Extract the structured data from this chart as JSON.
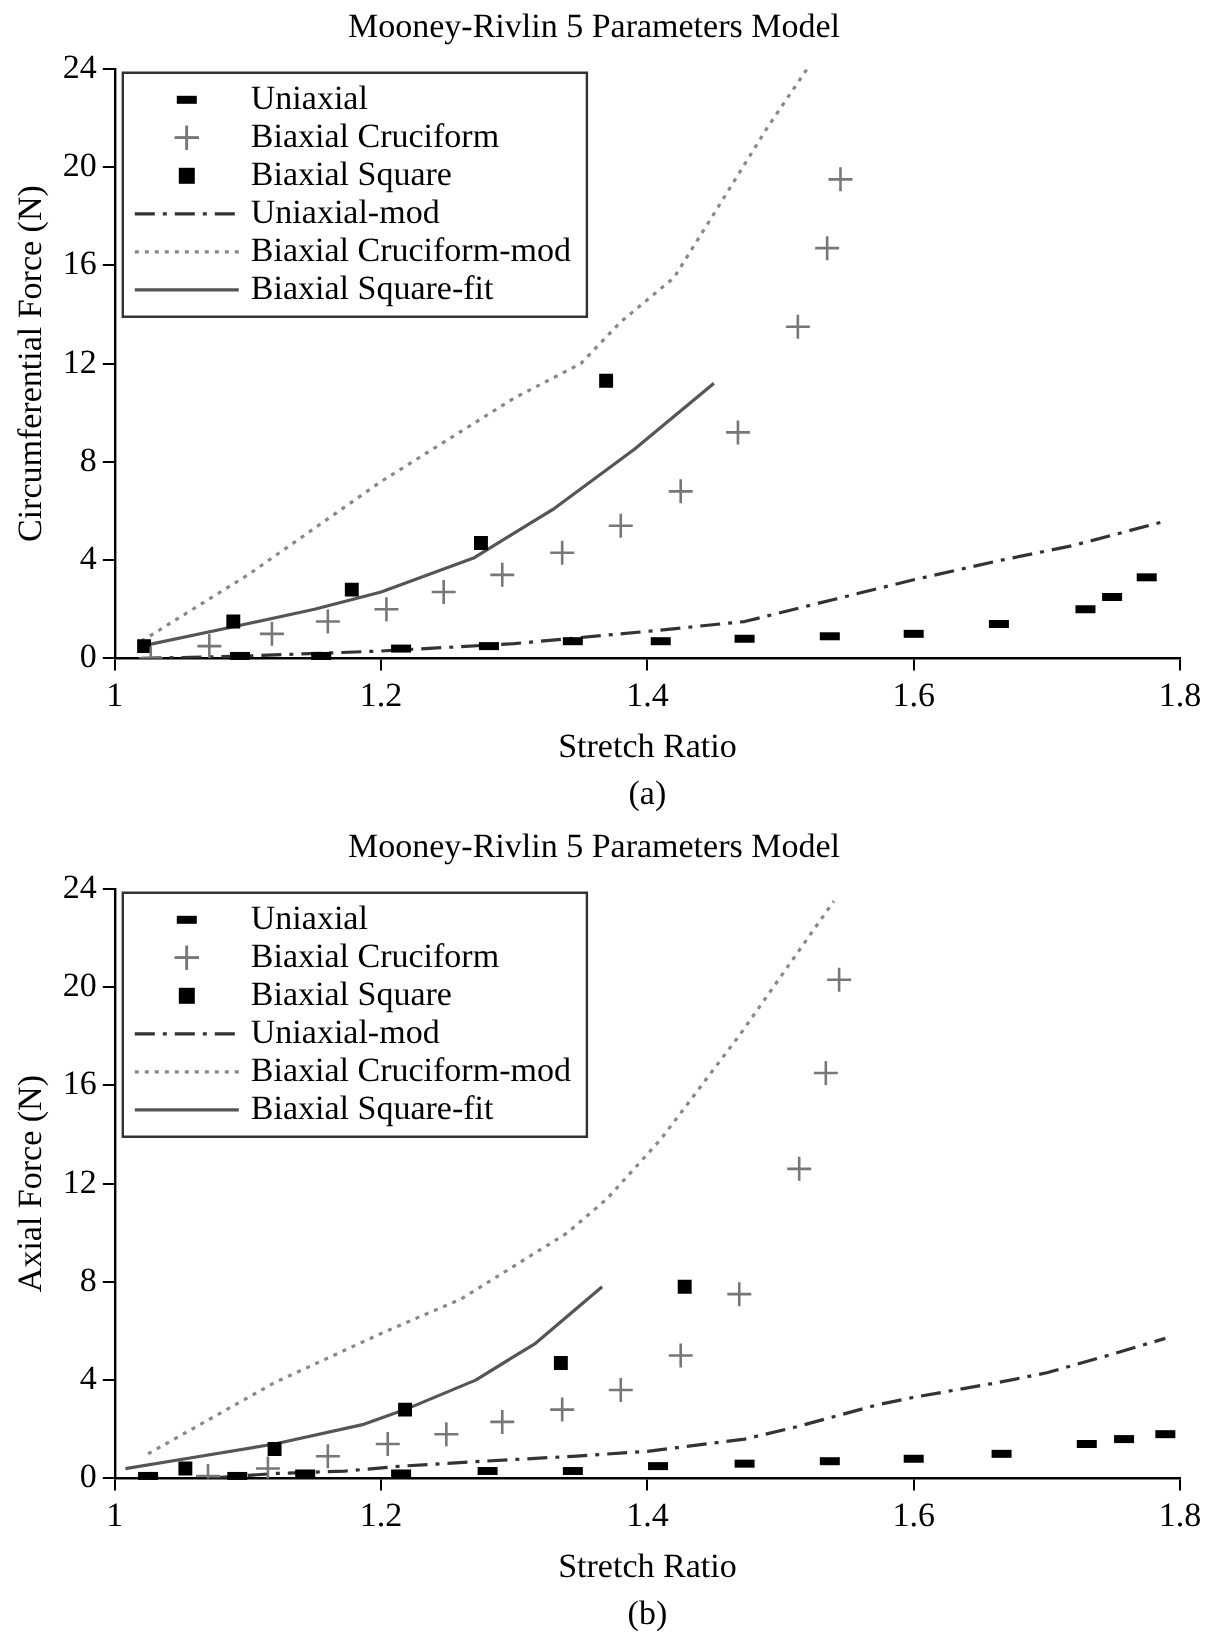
{
  "chart_data": [
    {
      "type": "scatter",
      "title": "Mooney-Rivlin 5 Parameters Model",
      "xlabel": "Stretch Ratio",
      "ylabel": "Circumferential Force (N)",
      "annotations": [
        "(a)"
      ],
      "xlim": [
        1,
        1.8
      ],
      "xticks": [
        1,
        1.2,
        1.4,
        1.6,
        1.8
      ],
      "ylim": [
        0,
        24
      ],
      "yticks": [
        0,
        4,
        8,
        12,
        16,
        20,
        24
      ],
      "grid": false,
      "legend": "top left",
      "series": [
        {
          "name": "Uniaxial",
          "type": "scatter",
          "color": "#000000",
          "x": [
            1.094,
            1.155,
            1.215,
            1.281,
            1.344,
            1.41,
            1.473,
            1.537,
            1.6,
            1.664,
            1.729,
            1.749,
            1.775
          ],
          "values": [
            0.1,
            0.1,
            0.4,
            0.5,
            0.7,
            0.7,
            0.8,
            0.9,
            1.0,
            1.4,
            2.0,
            2.5,
            3.3
          ]
        },
        {
          "name": "Biaxial Cruciform",
          "type": "scatter",
          "marker": "cross",
          "color": "#777777",
          "x": [
            1.027,
            1.071,
            1.118,
            1.16,
            1.204,
            1.247,
            1.291,
            1.336,
            1.38,
            1.425,
            1.468,
            1.513,
            1.535,
            1.545
          ],
          "values": [
            0,
            0.5,
            1.0,
            1.5,
            2.0,
            2.7,
            3.4,
            4.3,
            5.4,
            6.8,
            9.2,
            13.5,
            16.7,
            19.5
          ]
        },
        {
          "name": "Biaxial Square",
          "type": "scatter",
          "marker": "square",
          "color": "#000000",
          "x": [
            1.022,
            1.089,
            1.178,
            1.275,
            1.369
          ],
          "values": [
            0.5,
            1.5,
            2.8,
            4.7,
            11.3
          ]
        },
        {
          "name": "Uniaxial-mod",
          "type": "line",
          "marker": "none",
          "line_style": "dashdot",
          "color": "#333333",
          "x": [
            1.02,
            1.1,
            1.2,
            1.3,
            1.4,
            1.473,
            1.54,
            1.6,
            1.666,
            1.72,
            1.79
          ],
          "values": [
            0,
            0.1,
            0.3,
            0.6,
            1.1,
            1.5,
            2.4,
            3.2,
            4.0,
            4.6,
            5.6
          ]
        },
        {
          "name": "Biaxial Cruciform-mod",
          "type": "line",
          "marker": "none",
          "line_style": "dotted",
          "color": "#888888",
          "x": [
            1.02,
            1.1,
            1.2,
            1.3,
            1.35,
            1.38,
            1.42,
            1.45,
            1.49,
            1.52
          ],
          "values": [
            0.7,
            3.4,
            7.2,
            10.6,
            12.0,
            13.7,
            15.5,
            18.1,
            21.6,
            24
          ]
        },
        {
          "name": "Biaxial Square-fit",
          "type": "line",
          "marker": "none",
          "line_style": "solid",
          "color": "#555555",
          "x": [
            1.02,
            1.09,
            1.15,
            1.2,
            1.27,
            1.33,
            1.39,
            1.45
          ],
          "values": [
            0.5,
            1.3,
            2.0,
            2.7,
            4.1,
            6.1,
            8.5,
            11.2
          ]
        }
      ]
    },
    {
      "type": "scatter",
      "title": "Mooney-Rivlin 5 Parameters Model",
      "xlabel": "Stretch Ratio",
      "ylabel": "Axial Force (N)",
      "annotations": [
        "(b)"
      ],
      "xlim": [
        1,
        1.8
      ],
      "xticks": [
        1,
        1.2,
        1.4,
        1.6,
        1.8
      ],
      "ylim": [
        0,
        24
      ],
      "yticks": [
        0,
        4,
        8,
        12,
        16,
        20,
        24
      ],
      "grid": false,
      "legend": "top left",
      "series": [
        {
          "name": "Uniaxial",
          "type": "scatter",
          "color": "#000000",
          "x": [
            1.025,
            1.092,
            1.143,
            1.215,
            1.28,
            1.344,
            1.408,
            1.473,
            1.537,
            1.6,
            1.666,
            1.73,
            1.758,
            1.789
          ],
          "values": [
            0.1,
            0.1,
            0.2,
            0.2,
            0.3,
            0.3,
            0.5,
            0.6,
            0.7,
            0.8,
            1.0,
            1.4,
            1.6,
            1.8
          ]
        },
        {
          "name": "Biaxial Cruciform",
          "type": "scatter",
          "marker": "cross",
          "color": "#777777",
          "x": [
            1.07,
            1.115,
            1.16,
            1.205,
            1.249,
            1.291,
            1.336,
            1.38,
            1.425,
            1.469,
            1.514,
            1.534,
            1.544
          ],
          "values": [
            0.1,
            0.4,
            0.9,
            1.4,
            1.8,
            2.3,
            2.8,
            3.6,
            5.0,
            7.5,
            12.6,
            16.5,
            20.3
          ]
        },
        {
          "name": "Biaxial Square",
          "type": "scatter",
          "marker": "square",
          "color": "#000000",
          "x": [
            1.053,
            1.12,
            1.218,
            1.335,
            1.428
          ],
          "values": [
            0.4,
            1.2,
            2.8,
            4.7,
            7.8
          ]
        },
        {
          "name": "Uniaxial-mod",
          "type": "line",
          "marker": "none",
          "line_style": "dashdot",
          "color": "#333333",
          "x": [
            1.07,
            1.12,
            1.173,
            1.215,
            1.277,
            1.344,
            1.4,
            1.473,
            1.512,
            1.573,
            1.6,
            1.663,
            1.7,
            1.752,
            1.789
          ],
          "values": [
            0,
            0.2,
            0.3,
            0.5,
            0.7,
            0.9,
            1.1,
            1.6,
            2.1,
            3.0,
            3.3,
            3.9,
            4.3,
            5.1,
            5.7
          ]
        },
        {
          "name": "Biaxial Cruciform-mod",
          "type": "line",
          "marker": "none",
          "line_style": "dotted",
          "color": "#888888",
          "x": [
            1.025,
            1.12,
            1.2,
            1.26,
            1.34,
            1.37,
            1.41,
            1.47,
            1.54
          ],
          "values": [
            1.0,
            3.9,
            5.9,
            7.3,
            10.0,
            11.4,
            13.8,
            18.1,
            23.5
          ]
        },
        {
          "name": "Biaxial Square-fit",
          "type": "line",
          "marker": "none",
          "line_style": "solid",
          "color": "#555555",
          "x": [
            1.008,
            1.053,
            1.12,
            1.187,
            1.218,
            1.271,
            1.316,
            1.366
          ],
          "values": [
            0.4,
            0.8,
            1.4,
            2.2,
            2.8,
            4.0,
            5.5,
            7.8
          ]
        }
      ]
    }
  ]
}
